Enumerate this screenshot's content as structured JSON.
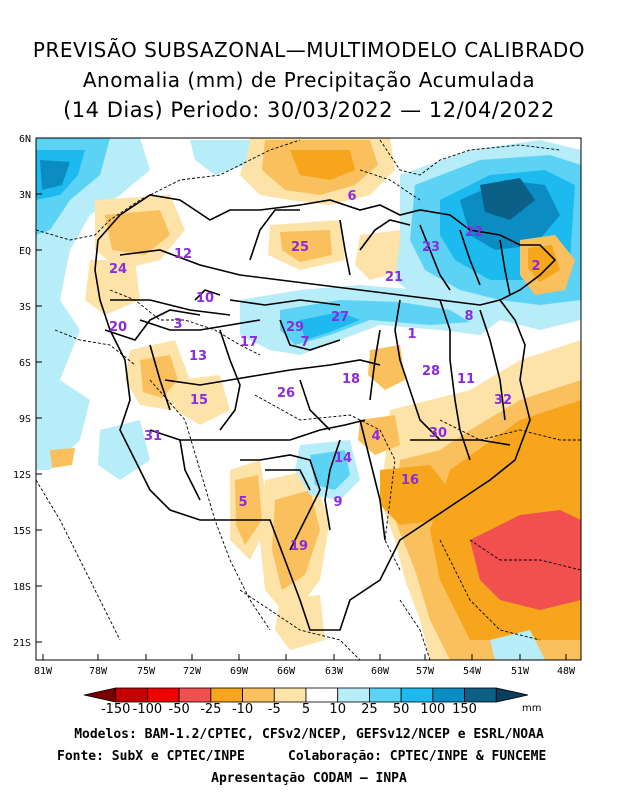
{
  "title": {
    "line1": "PREVISÃO SUBSAZONAL—MULTIMODELO CALIBRADO",
    "line2": "Anomalia (mm) de Precipitação Acumulada",
    "line3": "(14 Dias) Periodo: 30/03/2022 — 12/04/2022"
  },
  "lat_labels": [
    "6N",
    "3N",
    "EQ",
    "3S",
    "6S",
    "9S",
    "12S",
    "15S",
    "18S",
    "21S"
  ],
  "lon_labels": [
    "81W",
    "78W",
    "75W",
    "72W",
    "69W",
    "66W",
    "63W",
    "60W",
    "57W",
    "54W",
    "51W",
    "48W"
  ],
  "basins": [
    {
      "n": "1"
    },
    {
      "n": "2"
    },
    {
      "n": "3"
    },
    {
      "n": "4"
    },
    {
      "n": "5"
    },
    {
      "n": "6"
    },
    {
      "n": "7"
    },
    {
      "n": "8"
    },
    {
      "n": "9"
    },
    {
      "n": "10"
    },
    {
      "n": "11"
    },
    {
      "n": "12"
    },
    {
      "n": "13"
    },
    {
      "n": "14"
    },
    {
      "n": "15"
    },
    {
      "n": "16"
    },
    {
      "n": "17"
    },
    {
      "n": "18"
    },
    {
      "n": "19"
    },
    {
      "n": "20"
    },
    {
      "n": "21"
    },
    {
      "n": "22"
    },
    {
      "n": "23"
    },
    {
      "n": "24"
    },
    {
      "n": "25"
    },
    {
      "n": "26"
    },
    {
      "n": "27"
    },
    {
      "n": "28"
    },
    {
      "n": "29"
    },
    {
      "n": "30"
    },
    {
      "n": "31"
    },
    {
      "n": "32"
    }
  ],
  "colorbar": {
    "labels": [
      "-150",
      "-100",
      "-50",
      "-25",
      "-10",
      "-5",
      "5",
      "10",
      "25",
      "50",
      "100",
      "150"
    ],
    "unit": "mm",
    "colors": [
      "#c40000",
      "#f00000",
      "#f24f4f",
      "#f7a51c",
      "#f9c05d",
      "#fde3a7",
      "#ffffff",
      "#b7ecf9",
      "#5cd2f5",
      "#1cbaee",
      "#0b8cc2",
      "#0c5f86"
    ]
  },
  "footer": {
    "line1": "Modelos: BAM-1.2/CPTEC, CFSv2/NCEP, GEFSv12/NCEP e ESRL/NOAA",
    "line2a": "Fonte: SubX e CPTEC/INPE",
    "line2b": "Colaboração: CPTEC/INPE & FUNCEME",
    "line3": "Apresentação CODAM — INPA"
  }
}
